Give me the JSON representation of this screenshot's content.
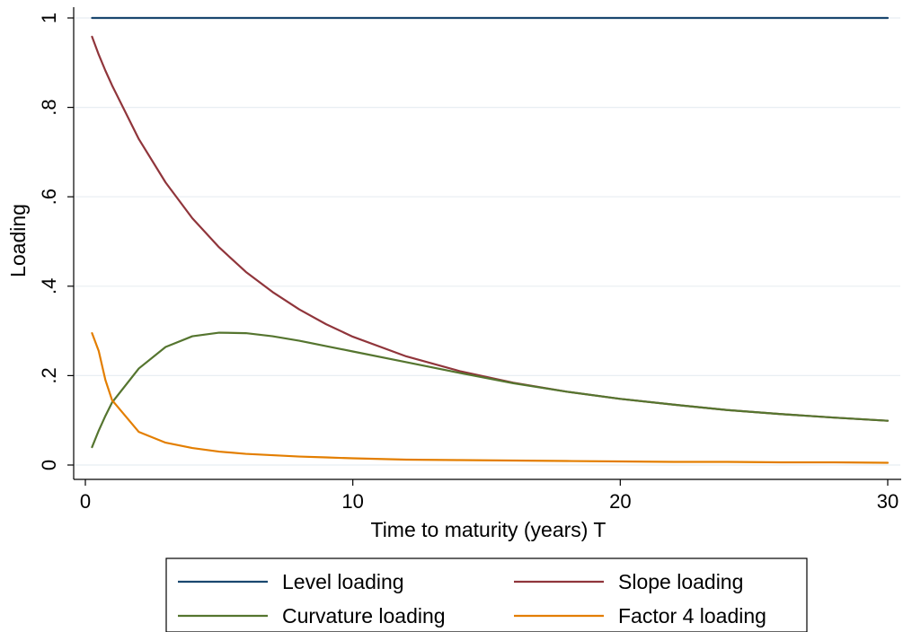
{
  "chart_data": {
    "type": "line",
    "title": "",
    "xlabel": "Time to maturity (years) T",
    "ylabel": "Loading",
    "xlim": [
      0,
      30
    ],
    "ylim": [
      0,
      1
    ],
    "x_ticks": [
      0,
      10,
      20,
      30
    ],
    "x_tick_labels": [
      "0",
      "10",
      "20",
      "30"
    ],
    "y_ticks": [
      0,
      0.2,
      0.4,
      0.6,
      0.8,
      1
    ],
    "y_tick_labels": [
      "0",
      ".2",
      ".4",
      ".6",
      ".8",
      "1"
    ],
    "grid": true,
    "legend": {
      "position": "bottom",
      "columns": 2
    },
    "series": [
      {
        "name": "Level loading",
        "color": "#1a476f",
        "x": [
          0.25,
          30
        ],
        "y": [
          1,
          1
        ]
      },
      {
        "name": "Slope loading",
        "color": "#90353b",
        "x": [
          0.25,
          0.5,
          0.75,
          1,
          2,
          3,
          4,
          5,
          6,
          7,
          8,
          9,
          10,
          12,
          14,
          16,
          18,
          20,
          22,
          24,
          26,
          28,
          30
        ],
        "y": [
          0.958,
          0.918,
          0.882,
          0.849,
          0.729,
          0.632,
          0.552,
          0.487,
          0.432,
          0.387,
          0.348,
          0.315,
          0.287,
          0.243,
          0.21,
          0.184,
          0.164,
          0.148,
          0.135,
          0.123,
          0.114,
          0.106,
          0.099
        ]
      },
      {
        "name": "Curvature loading",
        "color": "#55752f",
        "x": [
          0.25,
          0.5,
          0.75,
          1,
          2,
          3,
          4,
          5,
          6,
          7,
          8,
          9,
          10,
          12,
          14,
          16,
          18,
          20,
          22,
          24,
          26,
          28,
          30
        ],
        "y": [
          0.04,
          0.077,
          0.11,
          0.14,
          0.216,
          0.264,
          0.288,
          0.296,
          0.295,
          0.288,
          0.278,
          0.266,
          0.254,
          0.23,
          0.206,
          0.183,
          0.164,
          0.148,
          0.135,
          0.123,
          0.114,
          0.106,
          0.099
        ]
      },
      {
        "name": "Factor 4 loading",
        "color": "#e37e00",
        "x": [
          0.25,
          0.5,
          0.75,
          1,
          2,
          3,
          4,
          5,
          6,
          7,
          8,
          9,
          10,
          12,
          14,
          16,
          18,
          20,
          22,
          24,
          26,
          28,
          30
        ],
        "y": [
          0.295,
          0.255,
          0.19,
          0.145,
          0.074,
          0.05,
          0.038,
          0.03,
          0.025,
          0.022,
          0.019,
          0.017,
          0.015,
          0.012,
          0.011,
          0.01,
          0.009,
          0.008,
          0.007,
          0.007,
          0.006,
          0.006,
          0.005
        ]
      }
    ]
  }
}
